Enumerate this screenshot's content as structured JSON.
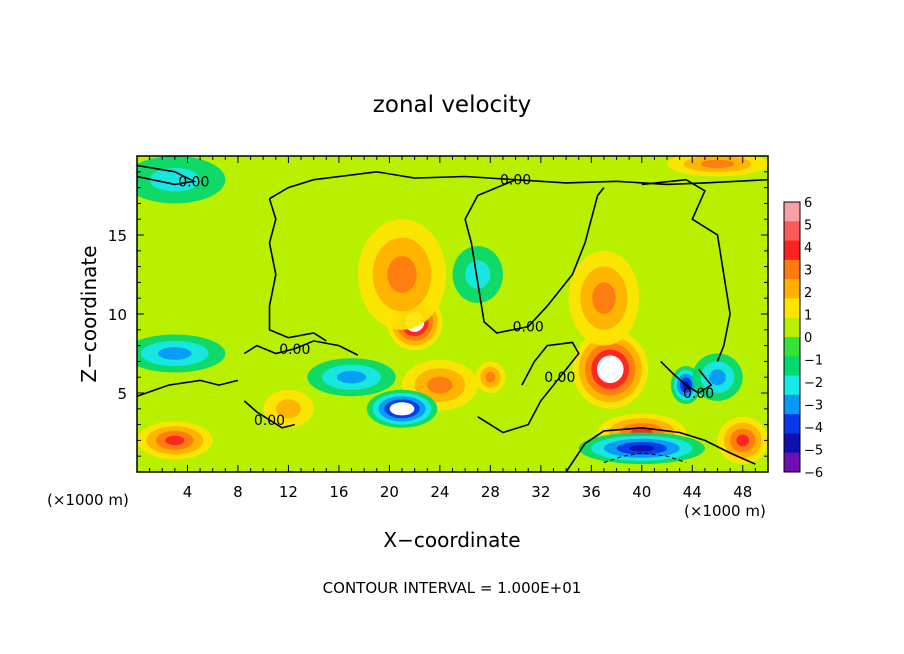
{
  "chart_data": {
    "type": "heatmap",
    "title": "zonal velocity",
    "xlabel": "X−coordinate",
    "ylabel": "Z−coordinate",
    "x_unit_left": "(×1000 m)",
    "x_unit_right": "(×1000 m)",
    "xlim": [
      0,
      50
    ],
    "ylim": [
      0,
      20
    ],
    "x_ticks": [
      4,
      8,
      12,
      16,
      20,
      24,
      28,
      32,
      36,
      40,
      44,
      48
    ],
    "y_ticks": [
      5,
      10,
      15
    ],
    "colorbar": {
      "min": -6,
      "max": 6,
      "labels": [
        "6",
        "5",
        "4",
        "3",
        "2",
        "1",
        "0",
        "−1",
        "−2",
        "−3",
        "−4",
        "−5",
        "−6"
      ],
      "colors": [
        "#f8a0a8",
        "#ff5a5a",
        "#ff2020",
        "#ff7a10",
        "#ffb000",
        "#ffe400",
        "#b8f000",
        "#38e238",
        "#00d870",
        "#18e8e8",
        "#0898f8",
        "#0838e8",
        "#1010b0",
        "#7010b0"
      ]
    },
    "blobs": [
      {
        "x": 22,
        "z": 9.5,
        "value": 5.5,
        "sx": 2.2,
        "sz": 1.8
      },
      {
        "x": 21,
        "z": 12.5,
        "value": 2.5,
        "sx": 3.5,
        "sz": 3.5
      },
      {
        "x": 24,
        "z": 5.5,
        "value": 3.2,
        "sx": 3.0,
        "sz": 1.6
      },
      {
        "x": 37.5,
        "z": 6.5,
        "value": 5.5,
        "sx": 3.0,
        "sz": 2.5
      },
      {
        "x": 37,
        "z": 11,
        "value": 3.0,
        "sx": 2.8,
        "sz": 3.0
      },
      {
        "x": 40,
        "z": 2.5,
        "value": 3.5,
        "sx": 3.5,
        "sz": 1.2
      },
      {
        "x": 21,
        "z": 4.0,
        "value": -5.5,
        "sx": 2.8,
        "sz": 1.2
      },
      {
        "x": 17,
        "z": 6.0,
        "value": -3.0,
        "sx": 3.5,
        "sz": 1.2
      },
      {
        "x": 40,
        "z": 1.5,
        "value": -5.0,
        "sx": 5.0,
        "sz": 1.0
      },
      {
        "x": 43.5,
        "z": 5.5,
        "value": -4.5,
        "sx": 1.2,
        "sz": 1.2
      },
      {
        "x": 3,
        "z": 7.5,
        "value": -2.5,
        "sx": 4.0,
        "sz": 1.2
      },
      {
        "x": 3,
        "z": 18.5,
        "value": -1.5,
        "sx": 4.0,
        "sz": 1.5
      },
      {
        "x": 27,
        "z": 12.5,
        "value": -1.5,
        "sx": 2.0,
        "sz": 1.8
      },
      {
        "x": 3,
        "z": 2.0,
        "value": 3.5,
        "sx": 3.0,
        "sz": 1.2
      },
      {
        "x": 28,
        "z": 6.0,
        "value": 3.0,
        "sx": 1.2,
        "sz": 1.0
      },
      {
        "x": 48,
        "z": 2.0,
        "value": 3.5,
        "sx": 2.0,
        "sz": 1.5
      },
      {
        "x": 46,
        "z": 6.0,
        "value": -2.5,
        "sx": 2.0,
        "sz": 1.5
      },
      {
        "x": 12,
        "z": 4.0,
        "value": 2.0,
        "sx": 2.0,
        "sz": 1.2
      },
      {
        "x": 46,
        "z": 19.5,
        "value": 3.0,
        "sx": 4.0,
        "sz": 0.8
      }
    ],
    "background_value": 0.7,
    "contours": [
      {
        "label": "0.00",
        "points": [
          [
            0,
            18.7
          ],
          [
            3,
            18.2
          ],
          [
            4.5,
            18.4
          ],
          [
            3,
            19.0
          ],
          [
            0,
            19.4
          ]
        ]
      },
      {
        "label": "0.00",
        "points": [
          [
            10.5,
            17.3
          ],
          [
            12,
            18.0
          ],
          [
            14,
            18.5
          ],
          [
            19,
            19.0
          ],
          [
            22,
            18.6
          ],
          [
            26,
            18.7
          ],
          [
            30,
            18.5
          ],
          [
            34,
            18.3
          ],
          [
            38,
            18.4
          ],
          [
            42,
            18.2
          ],
          [
            45,
            18.3
          ],
          [
            50,
            18.5
          ]
        ]
      },
      {
        "label": "",
        "points": [
          [
            10.5,
            17.3
          ],
          [
            11,
            16.0
          ],
          [
            10.5,
            14.5
          ],
          [
            11,
            12.5
          ],
          [
            10.5,
            10.5
          ],
          [
            10.5,
            9.0
          ],
          [
            12,
            8.5
          ],
          [
            14,
            8.8
          ],
          [
            15,
            8.3
          ]
        ]
      },
      {
        "label": "0.00",
        "points": [
          [
            30,
            18.5
          ],
          [
            27,
            17.5
          ],
          [
            26,
            16.0
          ],
          [
            26.5,
            14.5
          ],
          [
            27,
            12.0
          ],
          [
            27.5,
            9.5
          ],
          [
            28.5,
            8.8
          ],
          [
            31,
            9.2
          ],
          [
            32.5,
            10.5
          ],
          [
            34.5,
            12.5
          ],
          [
            35.5,
            14.5
          ],
          [
            36,
            16.0
          ],
          [
            36.5,
            17.5
          ],
          [
            37,
            18.0
          ]
        ]
      },
      {
        "label": "0.00",
        "points": [
          [
            8.5,
            7.5
          ],
          [
            9.5,
            8.0
          ],
          [
            11,
            7.5
          ],
          [
            12.5,
            7.8
          ],
          [
            14,
            8.3
          ],
          [
            16,
            8.0
          ],
          [
            17.5,
            7.4
          ]
        ]
      },
      {
        "label": "0.00",
        "points": [
          [
            30.5,
            5.5
          ],
          [
            31.5,
            7.0
          ],
          [
            32.5,
            8.0
          ],
          [
            34.5,
            8.2
          ],
          [
            35,
            7.5
          ],
          [
            33.5,
            6.0
          ],
          [
            32,
            4.5
          ],
          [
            31,
            3.0
          ],
          [
            29,
            2.5
          ],
          [
            27,
            3.5
          ]
        ]
      },
      {
        "label": "0.00",
        "points": [
          [
            8.5,
            4.5
          ],
          [
            9.5,
            3.8
          ],
          [
            10.5,
            3.3
          ],
          [
            11.5,
            2.8
          ],
          [
            12.5,
            3.0
          ]
        ]
      },
      {
        "label": "0.00",
        "points": [
          [
            41.5,
            7.0
          ],
          [
            42.5,
            6.2
          ],
          [
            43.5,
            5.5
          ],
          [
            44.5,
            5.0
          ],
          [
            45.5,
            5.5
          ],
          [
            44.5,
            6.5
          ]
        ]
      },
      {
        "label": "",
        "points": [
          [
            40,
            18.2
          ],
          [
            43.5,
            18.5
          ],
          [
            45,
            17.8
          ],
          [
            44,
            16.0
          ],
          [
            46,
            15.0
          ],
          [
            46.5,
            12.5
          ],
          [
            47,
            10.0
          ],
          [
            46.5,
            8.0
          ],
          [
            46,
            7.0
          ]
        ]
      },
      {
        "label": "",
        "points": [
          [
            0,
            4.8
          ],
          [
            2.5,
            5.5
          ],
          [
            5,
            5.8
          ],
          [
            6.5,
            5.5
          ],
          [
            8,
            5.8
          ]
        ]
      },
      {
        "label": "",
        "points": [
          [
            34,
            0
          ],
          [
            35.5,
            1.8
          ],
          [
            37,
            2.6
          ],
          [
            40,
            2.8
          ],
          [
            43,
            2.5
          ],
          [
            45,
            2.0
          ],
          [
            47,
            1.2
          ],
          [
            49,
            0.5
          ]
        ]
      }
    ],
    "dashed_contours": [
      {
        "points": [
          [
            37,
            0.6
          ],
          [
            38.5,
            1.0
          ],
          [
            40,
            1.2
          ],
          [
            42,
            1.0
          ],
          [
            43.5,
            0.6
          ]
        ]
      }
    ],
    "contour_interval_note": "CONTOUR INTERVAL = 1.000E+01"
  }
}
